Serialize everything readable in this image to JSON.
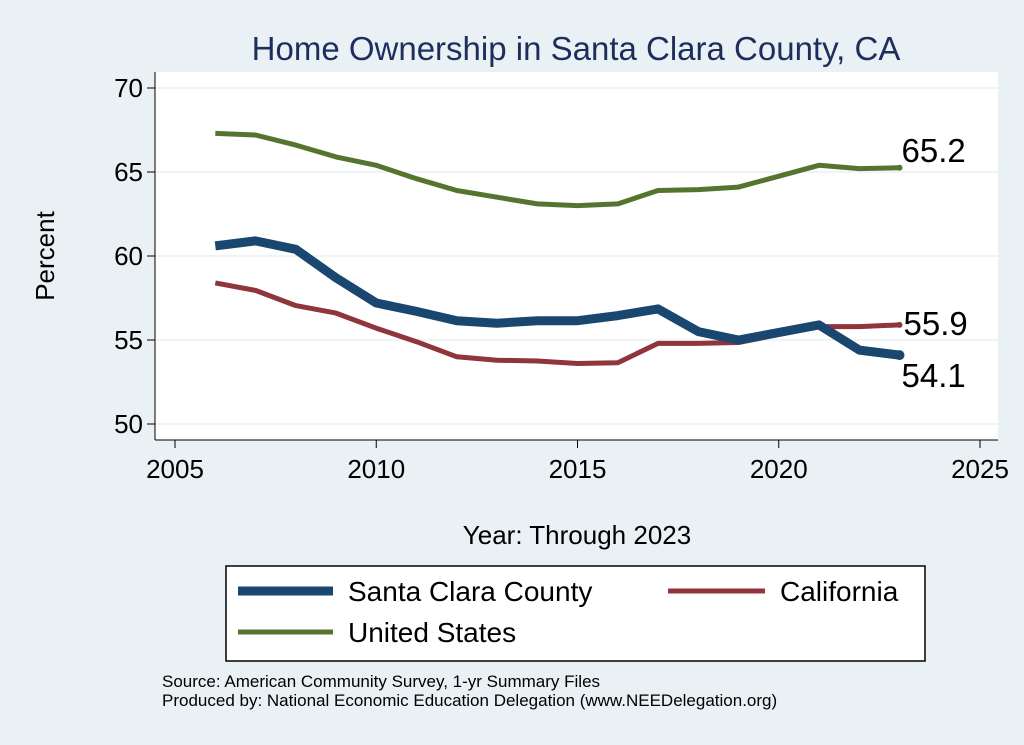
{
  "chart_data": {
    "type": "line",
    "title": "Home Ownership in Santa Clara County, CA",
    "xlabel": "Year: Through 2023",
    "ylabel": "Percent",
    "xlim": [
      2005,
      2025
    ],
    "ylim": [
      50,
      70
    ],
    "x_ticks": [
      2005,
      2010,
      2015,
      2020,
      2025
    ],
    "y_ticks": [
      50,
      55,
      60,
      65,
      70
    ],
    "grid": true,
    "x": [
      2006,
      2007,
      2008,
      2009,
      2010,
      2011,
      2012,
      2013,
      2014,
      2015,
      2016,
      2017,
      2018,
      2019,
      2021,
      2022,
      2023
    ],
    "series": [
      {
        "name": "Santa Clara County",
        "color": "#1a476f",
        "values": [
          60.6,
          60.9,
          60.4,
          58.7,
          57.2,
          56.7,
          56.15,
          56.0,
          56.15,
          56.15,
          56.45,
          56.85,
          55.5,
          55.0,
          55.9,
          54.4,
          54.1
        ],
        "end_label": "54.1"
      },
      {
        "name": "California",
        "color": "#90353b",
        "values": [
          58.4,
          57.95,
          57.05,
          56.6,
          55.7,
          54.9,
          54.0,
          53.8,
          53.75,
          53.6,
          53.65,
          54.8,
          54.8,
          54.85,
          55.8,
          55.8,
          55.9
        ],
        "end_label": "55.9"
      },
      {
        "name": "United States",
        "color": "#55752f",
        "values": [
          67.3,
          67.2,
          66.6,
          65.9,
          65.4,
          64.6,
          63.9,
          63.5,
          63.1,
          63.0,
          63.1,
          63.9,
          63.95,
          64.1,
          65.4,
          65.2,
          65.25
        ],
        "end_label": "65.2"
      }
    ],
    "legend": {
      "position": "bottom",
      "entries": [
        "Santa Clara County",
        "California",
        "United States"
      ]
    }
  },
  "source_note": "Source: American Community Survey, 1-yr Summary Files",
  "produced_note": "Produced by: National Economic Education Delegation (www.NEEDelegation.org)"
}
